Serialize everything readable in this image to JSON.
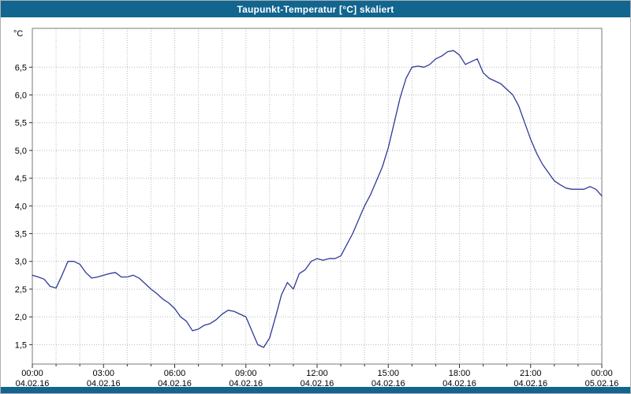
{
  "window": {
    "title": "Taupunkt-Temperatur [°C] skaliert"
  },
  "colors": {
    "titlebar_bg": "#11658f",
    "line": "#2e3a97",
    "grid": "#b8b8b8",
    "axis": "#303030",
    "plot_border": "#7a7a7a",
    "text": "#000000"
  },
  "chart_data": {
    "type": "line",
    "title": "Taupunkt-Temperatur [°C] skaliert",
    "xlabel": "",
    "ylabel": "°C",
    "ylim": [
      1.15,
      7.2
    ],
    "x_unit": "hours",
    "x_start_hours": 0,
    "x_step_hours": 0.25,
    "x_range_hours": [
      0,
      24
    ],
    "grid": "dotted, vertical every hour, horizontal every 0.5 °C",
    "legend": "none",
    "values": [
      2.75,
      2.72,
      2.68,
      2.55,
      2.52,
      2.75,
      3.0,
      3.0,
      2.95,
      2.8,
      2.7,
      2.72,
      2.75,
      2.78,
      2.8,
      2.72,
      2.72,
      2.75,
      2.7,
      2.6,
      2.5,
      2.42,
      2.32,
      2.25,
      2.15,
      2.0,
      1.92,
      1.75,
      1.78,
      1.85,
      1.88,
      1.95,
      2.05,
      2.12,
      2.1,
      2.05,
      2.0,
      1.75,
      1.5,
      1.45,
      1.62,
      2.0,
      2.4,
      2.62,
      2.5,
      2.78,
      2.85,
      3.0,
      3.05,
      3.02,
      3.05,
      3.05,
      3.1,
      3.3,
      3.5,
      3.75,
      4.0,
      4.2,
      4.45,
      4.7,
      5.05,
      5.5,
      5.95,
      6.3,
      6.5,
      6.52,
      6.5,
      6.55,
      6.65,
      6.7,
      6.78,
      6.8,
      6.72,
      6.55,
      6.6,
      6.65,
      6.4,
      6.3,
      6.25,
      6.2,
      6.1,
      6.0,
      5.8,
      5.5,
      5.2,
      4.95,
      4.75,
      4.6,
      4.45,
      4.38,
      4.32,
      4.3,
      4.3,
      4.3,
      4.35,
      4.3,
      4.18
    ],
    "yticks": [
      {
        "v": 6.5,
        "label": "6,5"
      },
      {
        "v": 6.0,
        "label": "6,0"
      },
      {
        "v": 5.5,
        "label": "5,5"
      },
      {
        "v": 5.0,
        "label": "5,0"
      },
      {
        "v": 4.5,
        "label": "4,5"
      },
      {
        "v": 4.0,
        "label": "4,0"
      },
      {
        "v": 3.5,
        "label": "3,5"
      },
      {
        "v": 3.0,
        "label": "3,0"
      },
      {
        "v": 2.5,
        "label": "2,5"
      },
      {
        "v": 2.0,
        "label": "2,0"
      },
      {
        "v": 1.5,
        "label": "1,5"
      }
    ],
    "xticks": [
      {
        "h": 0,
        "time": "00:00",
        "date": "04.02.16"
      },
      {
        "h": 3,
        "time": "03:00",
        "date": "04.02.16"
      },
      {
        "h": 6,
        "time": "06:00",
        "date": "04.02.16"
      },
      {
        "h": 9,
        "time": "09:00",
        "date": "04.02.16"
      },
      {
        "h": 12,
        "time": "12:00",
        "date": "04.02.16"
      },
      {
        "h": 15,
        "time": "15:00",
        "date": "04.02.16"
      },
      {
        "h": 18,
        "time": "18:00",
        "date": "04.02.16"
      },
      {
        "h": 21,
        "time": "21:00",
        "date": "04.02.16"
      },
      {
        "h": 24,
        "time": "00:00",
        "date": "05.02.16"
      }
    ]
  }
}
